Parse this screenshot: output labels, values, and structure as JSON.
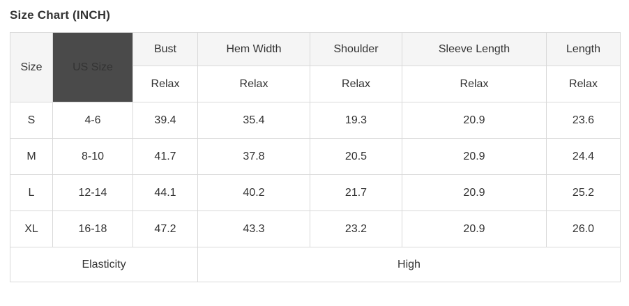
{
  "title": "Size Chart (INCH)",
  "table": {
    "header": {
      "size": "Size",
      "us_size": "US Size",
      "measure_columns": [
        "Bust",
        "Hem Width",
        "Shoulder",
        "Sleeve Length",
        "Length"
      ],
      "fit_label": "Relax"
    },
    "rows": [
      [
        "S",
        "4-6",
        "39.4",
        "35.4",
        "19.3",
        "20.9",
        "23.6"
      ],
      [
        "M",
        "8-10",
        "41.7",
        "37.8",
        "20.5",
        "20.9",
        "24.4"
      ],
      [
        "L",
        "12-14",
        "44.1",
        "40.2",
        "21.7",
        "20.9",
        "25.2"
      ],
      [
        "XL",
        "16-18",
        "47.2",
        "43.3",
        "23.2",
        "20.9",
        "26.0"
      ]
    ],
    "footer": {
      "label": "Elasticity",
      "value": "High"
    }
  },
  "colors": {
    "header_background": "#f5f5f5",
    "us_size_background": "#4a4a4a",
    "us_size_text": "#ffffff",
    "border": "#d9d9d9",
    "text": "#333333"
  }
}
